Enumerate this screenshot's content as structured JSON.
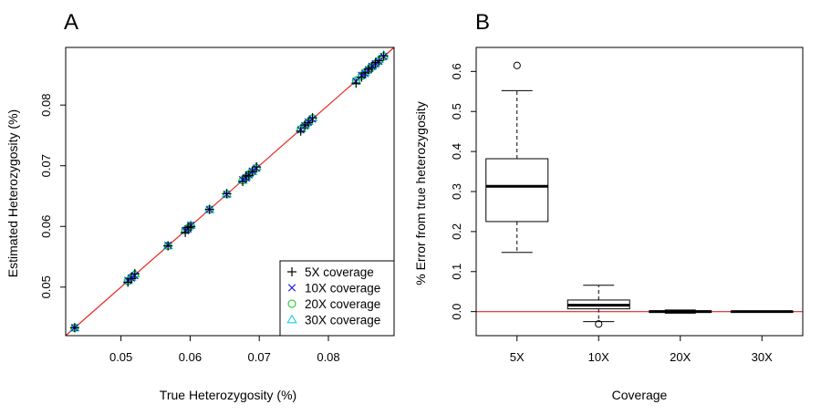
{
  "chart_data": [
    {
      "panel": "A",
      "type": "scatter",
      "xlabel": "True Heterozygosity (%)",
      "ylabel": "Estimated Heterozygosity (%)",
      "xlim": [
        0.042,
        0.0895
      ],
      "ylim": [
        0.042,
        0.0895
      ],
      "xticks": [
        0.05,
        0.06,
        0.07,
        0.08
      ],
      "yticks": [
        0.05,
        0.06,
        0.07,
        0.08
      ],
      "xtick_labels": [
        "0.05",
        "0.06",
        "0.07",
        "0.08"
      ],
      "ytick_labels": [
        "0.05",
        "0.06",
        "0.07",
        "0.08"
      ],
      "reference_line": {
        "type": "identity",
        "color": "#e8261f"
      },
      "true_values": [
        0.0433,
        0.051,
        0.0515,
        0.052,
        0.0568,
        0.0593,
        0.0597,
        0.0601,
        0.0628,
        0.0653,
        0.0676,
        0.0681,
        0.0685,
        0.069,
        0.0696,
        0.076,
        0.0766,
        0.0771,
        0.0777,
        0.084,
        0.0848,
        0.0853,
        0.0858,
        0.0863,
        0.0868,
        0.0873,
        0.088
      ],
      "series": [
        {
          "name": "5X coverage",
          "marker": "plus",
          "color": "#000000",
          "noise": [
            0.0,
            -0.0002,
            -0.0001,
            0.0002,
            0.0,
            -0.0003,
            0.0001,
            -0.0001,
            0.0,
            0.0001,
            -0.0002,
            0.0002,
            -0.0001,
            0.0,
            0.0002,
            -0.0003,
            0.0001,
            0.0,
            0.0002,
            -0.0004,
            -0.0002,
            0.0,
            0.0001,
            -0.0001,
            0.0002,
            0.0,
            0.0001
          ]
        },
        {
          "name": "10X coverage",
          "marker": "x",
          "color": "#1a1aee",
          "noise": [
            0.0,
            0.0001,
            0.0,
            -0.0001,
            0.0001,
            0.0,
            -0.0001,
            0.0001,
            0.0,
            0.0,
            0.0001,
            -0.0001,
            0.0,
            0.0001,
            0.0,
            -0.0001,
            0.0,
            0.0001,
            0.0,
            -0.0001,
            0.0001,
            -0.0001,
            0.0,
            0.0001,
            0.0,
            -0.0001,
            0.0
          ]
        },
        {
          "name": "20X coverage",
          "marker": "circle",
          "color": "#19c819",
          "noise": [
            0.0,
            0.0,
            0.0001,
            0.0,
            0.0,
            0.0001,
            0.0,
            0.0,
            0.0,
            0.0,
            0.0,
            0.0,
            0.0001,
            0.0,
            0.0,
            0.0,
            0.0,
            0.0,
            0.0001,
            0.0,
            0.0,
            0.0001,
            0.0,
            0.0,
            0.0,
            0.0,
            0.0
          ]
        },
        {
          "name": "30X coverage",
          "marker": "triangle",
          "color": "#1ad0e8",
          "noise": [
            0.0,
            0.0001,
            0.0001,
            0.0002,
            0.0,
            0.0001,
            0.0002,
            0.0001,
            0.0,
            0.0001,
            0.0,
            0.0001,
            0.0002,
            0.0001,
            0.0002,
            0.0001,
            0.0001,
            0.0002,
            0.0002,
            0.0,
            0.0001,
            0.0001,
            0.0002,
            0.0001,
            0.0001,
            0.0002,
            0.0002
          ]
        }
      ],
      "legend": {
        "position": "bottom-right",
        "entries": [
          "5X coverage",
          "10X coverage",
          "20X coverage",
          "30X coverage"
        ]
      },
      "grid": false
    },
    {
      "panel": "B",
      "type": "box",
      "xlabel": "Coverage",
      "ylabel": "% Error from true heterozygosity",
      "ylim": [
        -0.06,
        0.66
      ],
      "yticks": [
        0.0,
        0.1,
        0.2,
        0.3,
        0.4,
        0.5,
        0.6
      ],
      "ytick_labels": [
        "0.0",
        "0.1",
        "0.2",
        "0.3",
        "0.4",
        "0.5",
        "0.6"
      ],
      "categories": [
        "5X",
        "10X",
        "20X",
        "30X"
      ],
      "boxes": [
        {
          "label": "5X",
          "whisker_low": 0.148,
          "q1": 0.225,
          "median": 0.313,
          "q3": 0.382,
          "whisker_high": 0.552,
          "outliers": [
            0.615
          ]
        },
        {
          "label": "10X",
          "whisker_low": -0.025,
          "q1": 0.007,
          "median": 0.016,
          "q3": 0.029,
          "whisker_high": 0.066,
          "outliers": [
            -0.031
          ]
        },
        {
          "label": "20X",
          "whisker_low": -0.004,
          "q1": -0.002,
          "median": 0.0,
          "q3": 0.002,
          "whisker_high": 0.004,
          "outliers": []
        },
        {
          "label": "30X",
          "whisker_low": -0.001,
          "q1": -0.0005,
          "median": 0.0,
          "q3": 0.0005,
          "whisker_high": 0.001,
          "outliers": []
        }
      ],
      "reference_line": {
        "y": 0.0,
        "color": "#e8261f"
      },
      "grid": false
    }
  ]
}
